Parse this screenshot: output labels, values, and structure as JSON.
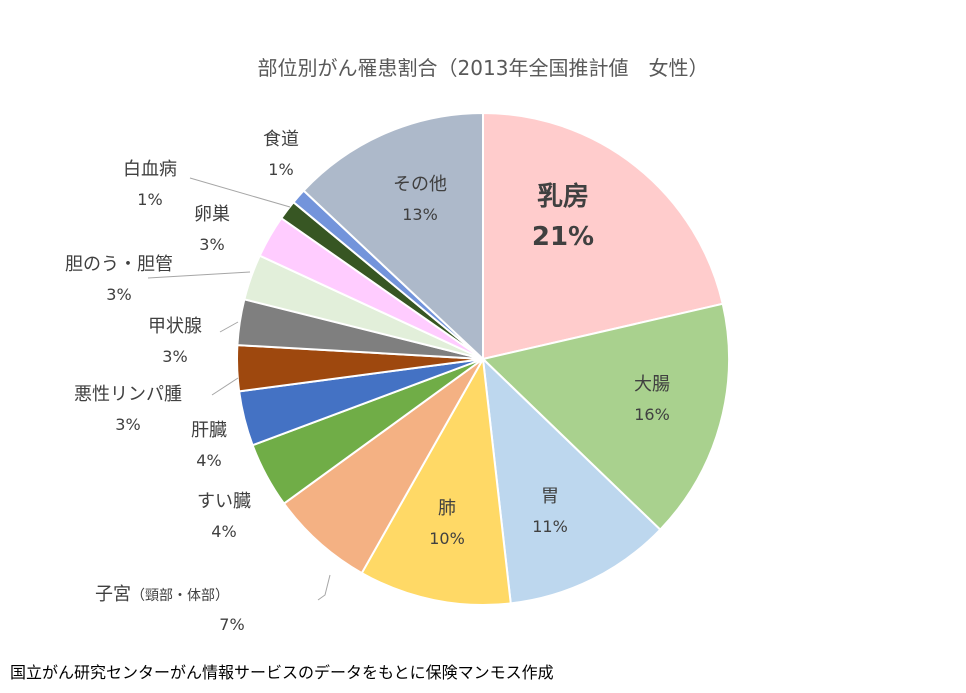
{
  "chart_data": {
    "type": "pie",
    "title": "部位別がん罹患割合（2013年全国推計値　女性）",
    "slices": [
      {
        "name": "乳房",
        "value_label": "21%",
        "value": 21.4,
        "color": "#FFCCCC"
      },
      {
        "name": "大腸",
        "value_label": "16%",
        "value": 15.8,
        "color": "#A9D18E"
      },
      {
        "name": "胃",
        "value_label": "11%",
        "value": 11.0,
        "color": "#BDD7EE"
      },
      {
        "name": "肺",
        "value_label": "10%",
        "value": 10.0,
        "color": "#FFD966"
      },
      {
        "name": "子宮",
        "name_sub": "（頸部・体部）",
        "value_label": "7%",
        "value": 6.8,
        "color": "#F4B183"
      },
      {
        "name": "すい臓",
        "value_label": "4%",
        "value": 4.3,
        "color": "#70AD47"
      },
      {
        "name": "肝臓",
        "value_label": "4%",
        "value": 3.6,
        "color": "#4472C4"
      },
      {
        "name": "悪性リンパ腫",
        "value_label": "3%",
        "value": 3.0,
        "color": "#9E480E"
      },
      {
        "name": "甲状腺",
        "value_label": "3%",
        "value": 3.0,
        "color": "#7F7F7F"
      },
      {
        "name": "胆のう・胆管",
        "value_label": "3%",
        "value": 3.0,
        "color": "#E2EFDA"
      },
      {
        "name": "卵巣",
        "value_label": "3%",
        "value": 2.8,
        "color": "#FFCCFF"
      },
      {
        "name": "白血病",
        "value_label": "1%",
        "value": 1.3,
        "color": "#375623"
      },
      {
        "name": "食道",
        "value_label": "1%",
        "value": 1.0,
        "color": "#7394DB"
      },
      {
        "name": "その他",
        "value_label": "13%",
        "value": 13.0,
        "color": "#ADB9CA"
      }
    ]
  },
  "source_note": "国立がん研究センターがん情報サービスのデータをもとに保険マンモス作成"
}
